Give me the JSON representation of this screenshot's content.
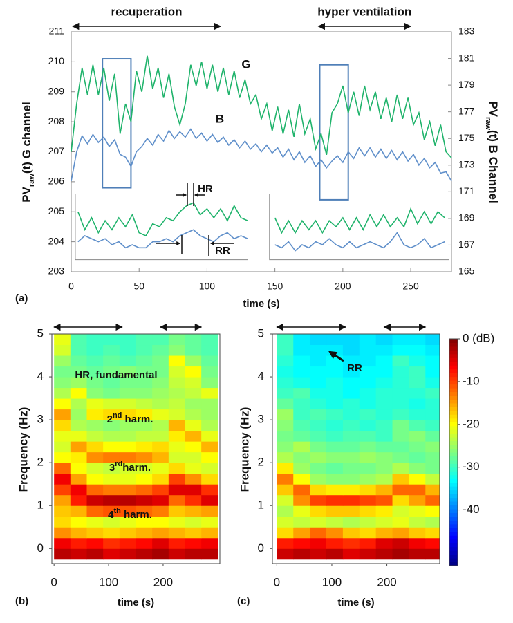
{
  "chart_data": [
    {
      "type": "line",
      "panel": "(a)",
      "x": [
        0,
        4,
        8,
        12,
        16,
        20,
        24,
        28,
        32,
        36,
        40,
        44,
        48,
        52,
        56,
        60,
        64,
        68,
        72,
        76,
        80,
        84,
        88,
        92,
        96,
        100,
        104,
        108,
        112,
        116,
        120,
        124,
        128,
        132,
        136,
        140,
        144,
        148,
        152,
        156,
        160,
        164,
        168,
        172,
        176,
        180,
        184,
        188,
        192,
        196,
        200,
        204,
        208,
        212,
        216,
        220,
        224,
        228,
        232,
        236,
        240,
        244,
        248,
        252,
        256,
        260,
        264,
        268,
        272,
        276,
        280
      ],
      "xlim": [
        0,
        280
      ],
      "xticks": [
        0,
        50,
        100,
        150,
        200,
        250
      ],
      "ylim": [
        203,
        211
      ],
      "yticks": [
        203,
        204,
        205,
        206,
        207,
        208,
        209,
        210,
        211
      ],
      "y2lim": [
        165,
        183
      ],
      "y2ticks": [
        165,
        167,
        169,
        171,
        173,
        175,
        177,
        179,
        181,
        183
      ],
      "xlabel": "time (s)",
      "ylabel": [
        "PV",
        "raw",
        "(t) G channel"
      ],
      "y2label": [
        "PV",
        "raw",
        "(t) B Channel"
      ],
      "series": [
        {
          "name": "G",
          "color": "#1fb36b",
          "values": [
            207.0,
            208.6,
            209.8,
            208.9,
            209.9,
            208.9,
            209.8,
            208.7,
            209.6,
            207.6,
            208.6,
            208.0,
            209.7,
            209.0,
            210.2,
            209.1,
            209.8,
            208.8,
            209.6,
            208.5,
            207.9,
            208.6,
            209.9,
            209.2,
            210.0,
            209.1,
            209.9,
            209.0,
            209.8,
            208.9,
            209.7,
            208.8,
            209.4,
            208.6,
            208.9,
            208.1,
            208.6,
            207.7,
            208.5,
            207.6,
            208.4,
            207.5,
            208.6,
            207.6,
            208.1,
            207.1,
            207.6,
            206.9,
            208.3,
            208.6,
            209.2,
            208.3,
            209.0,
            208.2,
            209.2,
            208.4,
            209.0,
            208.1,
            208.8,
            208.0,
            208.9,
            208.1,
            208.8,
            207.9,
            208.3,
            207.4,
            208.0,
            207.2,
            207.9,
            207.0,
            206.8
          ]
        },
        {
          "name": "B",
          "color": "#5f8fca",
          "axis": "y2",
          "values": [
            171.8,
            174.0,
            175.2,
            174.6,
            175.3,
            174.7,
            175.1,
            174.4,
            174.9,
            173.8,
            173.6,
            172.9,
            174.0,
            174.4,
            175.0,
            174.5,
            175.3,
            174.8,
            175.6,
            175.0,
            175.5,
            175.1,
            175.7,
            175.0,
            175.4,
            174.8,
            175.3,
            174.7,
            175.1,
            174.5,
            174.9,
            174.3,
            174.8,
            174.2,
            174.6,
            174.0,
            174.5,
            173.9,
            174.3,
            173.6,
            174.2,
            173.4,
            174.0,
            173.2,
            173.7,
            172.9,
            173.4,
            172.8,
            173.3,
            173.7,
            173.2,
            174.0,
            173.5,
            174.3,
            173.7,
            174.3,
            173.6,
            174.2,
            173.5,
            174.1,
            173.4,
            174.0,
            173.3,
            173.8,
            173.0,
            173.5,
            172.8,
            173.2,
            172.4,
            172.5,
            171.8
          ]
        }
      ],
      "phases": [
        {
          "label": "recuperation",
          "span": [
            1,
            110
          ]
        },
        {
          "label": "hyper ventilation",
          "span": [
            182,
            250
          ]
        }
      ],
      "boxes": [
        {
          "x": [
            23,
            44
          ],
          "y": [
            205.8,
            210.1
          ]
        },
        {
          "x": [
            183,
            204
          ],
          "y": [
            205.4,
            209.9
          ]
        }
      ],
      "box_color": "#4f7fb8",
      "insets": [
        {
          "frame_x": [
            3,
            130
          ],
          "frame_y": [
            203.4,
            205.6
          ],
          "x": [
            5,
            10,
            15,
            20,
            25,
            30,
            35,
            40,
            45,
            50,
            55,
            60,
            65,
            70,
            75,
            80,
            85,
            90,
            95,
            100,
            105,
            110,
            115,
            120,
            125,
            130
          ],
          "G": [
            205.0,
            204.4,
            204.8,
            204.3,
            204.7,
            204.4,
            204.8,
            204.5,
            204.9,
            204.3,
            204.2,
            204.6,
            204.5,
            204.8,
            204.7,
            205.0,
            205.2,
            205.3,
            204.9,
            205.1,
            204.8,
            205.1,
            204.7,
            205.2,
            204.8,
            204.7
          ],
          "B": [
            204.0,
            204.2,
            204.1,
            204.0,
            204.1,
            203.9,
            204.0,
            203.8,
            203.9,
            203.8,
            203.8,
            204.0,
            204.0,
            204.1,
            204.0,
            204.2,
            204.3,
            204.4,
            204.2,
            204.1,
            204.0,
            204.2,
            204.3,
            204.1,
            204.2,
            204.1
          ]
        },
        {
          "frame_x": [
            146,
            278
          ],
          "frame_y": [
            203.4,
            205.6
          ],
          "x": [
            150,
            155,
            160,
            165,
            170,
            175,
            180,
            185,
            190,
            195,
            200,
            205,
            210,
            215,
            220,
            225,
            230,
            235,
            240,
            245,
            250,
            255,
            260,
            265,
            270,
            275
          ],
          "G": [
            204.8,
            204.3,
            204.7,
            204.3,
            204.7,
            204.4,
            204.7,
            204.3,
            204.7,
            204.5,
            204.8,
            204.4,
            204.8,
            204.4,
            204.9,
            204.5,
            204.9,
            204.5,
            204.8,
            204.5,
            205.1,
            204.6,
            205.0,
            204.6,
            205.0,
            204.8
          ],
          "B": [
            203.9,
            203.8,
            204.0,
            203.7,
            203.9,
            203.8,
            204.0,
            203.9,
            204.1,
            203.9,
            203.8,
            204.0,
            203.8,
            203.9,
            204.0,
            203.9,
            203.8,
            204.0,
            204.3,
            203.9,
            203.8,
            203.9,
            204.1,
            203.8,
            203.9,
            204.0
          ]
        }
      ],
      "annotations": [
        "HR",
        "RR"
      ]
    },
    {
      "type": "heatmap",
      "panel": "(b)",
      "time": [
        15,
        45,
        75,
        105,
        135,
        165,
        195,
        225,
        255,
        285
      ],
      "freq": [
        -0.125,
        0.125,
        0.375,
        0.625,
        0.875,
        1.125,
        1.375,
        1.625,
        1.875,
        2.125,
        2.375,
        2.625,
        2.875,
        3.125,
        3.375,
        3.625,
        3.875,
        4.125,
        4.375,
        4.625,
        4.875
      ],
      "z": [
        [
          -3,
          -4,
          -3,
          -5,
          -4,
          -3,
          -2,
          -4,
          -3,
          -3
        ],
        [
          -6,
          -8,
          -7,
          -9,
          -8,
          -7,
          -5,
          -8,
          -7,
          -6
        ],
        [
          -14,
          -16,
          -17,
          -18,
          -17,
          -16,
          -15,
          -16,
          -17,
          -16
        ],
        [
          -18,
          -20,
          -21,
          -22,
          -21,
          -20,
          -20,
          -21,
          -22,
          -21
        ],
        [
          -17,
          -16,
          -12,
          -11,
          -11,
          -12,
          -13,
          -17,
          -16,
          -15
        ],
        [
          -15,
          -8,
          -4,
          -3,
          -3,
          -4,
          -5,
          -12,
          -9,
          -5
        ],
        [
          -10,
          -6,
          -12,
          -13,
          -13,
          -12,
          -10,
          -5,
          -5,
          -9
        ],
        [
          -6,
          -15,
          -20,
          -21,
          -21,
          -20,
          -18,
          -10,
          -14,
          -18
        ],
        [
          -12,
          -20,
          -22,
          -23,
          -22,
          -22,
          -21,
          -18,
          -21,
          -22
        ],
        [
          -20,
          -19,
          -14,
          -13,
          -13,
          -14,
          -16,
          -22,
          -22,
          -20
        ],
        [
          -22,
          -15,
          -18,
          -20,
          -20,
          -19,
          -18,
          -21,
          -20,
          -16
        ],
        [
          -21,
          -21,
          -23,
          -24,
          -24,
          -23,
          -23,
          -19,
          -16,
          -21
        ],
        [
          -18,
          -24,
          -25,
          -26,
          -25,
          -25,
          -24,
          -16,
          -21,
          -24
        ],
        [
          -15,
          -25,
          -19,
          -18,
          -18,
          -19,
          -21,
          -22,
          -24,
          -25
        ],
        [
          -20,
          -24,
          -21,
          -22,
          -22,
          -23,
          -24,
          -23,
          -25,
          -25
        ],
        [
          -24,
          -20,
          -26,
          -27,
          -26,
          -26,
          -25,
          -24,
          -23,
          -21
        ],
        [
          -26,
          -25,
          -27,
          -28,
          -27,
          -27,
          -26,
          -23,
          -22,
          -26
        ],
        [
          -27,
          -27,
          -28,
          -27,
          -26,
          -27,
          -27,
          -22,
          -20,
          -27
        ],
        [
          -25,
          -28,
          -29,
          -28,
          -29,
          -28,
          -27,
          -20,
          -25,
          -28
        ],
        [
          -22,
          -29,
          -30,
          -29,
          -30,
          -29,
          -28,
          -26,
          -28,
          -29
        ],
        [
          -21,
          -29,
          -30,
          -30,
          -30,
          -29,
          -29,
          -27,
          -28,
          -29
        ]
      ],
      "zlim": [
        -53,
        0
      ],
      "xlim": [
        -4,
        304
      ],
      "xticks": [
        0,
        100,
        200
      ],
      "ylim": [
        -0.35,
        5
      ],
      "yticks": [
        0,
        1,
        2,
        3,
        4,
        5
      ],
      "xlabel": "time (s)",
      "ylabel": "Frequency  (Hz)",
      "arrows": [
        [
          0,
          125
        ],
        [
          195,
          270
        ]
      ],
      "annotations": [
        [
          "HR, fundamental"
        ],
        [
          "2",
          "nd",
          " harm."
        ],
        [
          "3",
          "rd",
          "harm."
        ],
        [
          "4",
          "th",
          " harm."
        ]
      ]
    },
    {
      "type": "heatmap",
      "panel": "(c)",
      "time": [
        15,
        45,
        75,
        105,
        135,
        165,
        195,
        225,
        255,
        285
      ],
      "freq": [
        -0.125,
        0.125,
        0.375,
        0.625,
        0.875,
        1.125,
        1.375,
        1.625,
        1.875,
        2.125,
        2.375,
        2.625,
        2.875,
        3.125,
        3.375,
        3.625,
        3.875,
        4.125,
        4.375,
        4.625,
        4.875
      ],
      "z": [
        [
          -4,
          -3,
          -4,
          -3,
          -5,
          -4,
          -3,
          -2,
          -3,
          -3
        ],
        [
          -8,
          -7,
          -6,
          -8,
          -9,
          -8,
          -5,
          -4,
          -6,
          -7
        ],
        [
          -18,
          -15,
          -12,
          -14,
          -17,
          -18,
          -16,
          -15,
          -17,
          -18
        ],
        [
          -22,
          -23,
          -22,
          -23,
          -24,
          -23,
          -22,
          -21,
          -23,
          -24
        ],
        [
          -24,
          -21,
          -18,
          -17,
          -17,
          -18,
          -19,
          -22,
          -21,
          -20
        ],
        [
          -22,
          -14,
          -10,
          -9,
          -9,
          -10,
          -11,
          -18,
          -15,
          -12
        ],
        [
          -17,
          -12,
          -18,
          -19,
          -19,
          -18,
          -16,
          -12,
          -12,
          -16
        ],
        [
          -13,
          -20,
          -25,
          -26,
          -26,
          -25,
          -24,
          -17,
          -20,
          -23
        ],
        [
          -19,
          -25,
          -27,
          -28,
          -27,
          -27,
          -26,
          -24,
          -26,
          -27
        ],
        [
          -24,
          -26,
          -25,
          -26,
          -26,
          -25,
          -26,
          -27,
          -28,
          -27
        ],
        [
          -26,
          -24,
          -27,
          -28,
          -28,
          -27,
          -28,
          -28,
          -27,
          -26
        ],
        [
          -27,
          -28,
          -29,
          -30,
          -29,
          -29,
          -30,
          -27,
          -26,
          -28
        ],
        [
          -26,
          -29,
          -30,
          -31,
          -30,
          -31,
          -30,
          -27,
          -29,
          -30
        ],
        [
          -25,
          -30,
          -29,
          -30,
          -31,
          -30,
          -31,
          -30,
          -31,
          -31
        ],
        [
          -28,
          -30,
          -31,
          -32,
          -31,
          -32,
          -31,
          -31,
          -32,
          -31
        ],
        [
          -30,
          -29,
          -32,
          -32,
          -33,
          -32,
          -31,
          -31,
          -31,
          -30
        ],
        [
          -31,
          -32,
          -33,
          -32,
          -33,
          -33,
          -32,
          -31,
          -30,
          -32
        ],
        [
          -32,
          -33,
          -33,
          -33,
          -34,
          -33,
          -33,
          -31,
          -30,
          -33
        ],
        [
          -31,
          -33,
          -34,
          -33,
          -34,
          -34,
          -33,
          -30,
          -32,
          -33
        ],
        [
          -30,
          -34,
          -34,
          -34,
          -35,
          -34,
          -34,
          -33,
          -33,
          -34
        ],
        [
          -30,
          -34,
          -35,
          -35,
          -35,
          -34,
          -35,
          -34,
          -34,
          -35
        ]
      ],
      "zlim": [
        -53,
        0
      ],
      "xlim": [
        -8,
        296
      ],
      "xticks": [
        0,
        100,
        200
      ],
      "ylim": [
        -0.35,
        5
      ],
      "yticks": [
        0,
        1,
        2,
        3,
        4,
        5
      ],
      "xlabel": "time (s)",
      "ylabel": "Frequency  (Hz)",
      "arrows": [
        [
          0,
          125
        ],
        [
          195,
          270
        ]
      ],
      "annotations": [
        [
          "RR"
        ]
      ],
      "colorbar": {
        "ticks": [
          {
            "value": 0,
            "label": "0 (dB)"
          },
          -10,
          -20,
          -30,
          -40
        ]
      }
    }
  ]
}
